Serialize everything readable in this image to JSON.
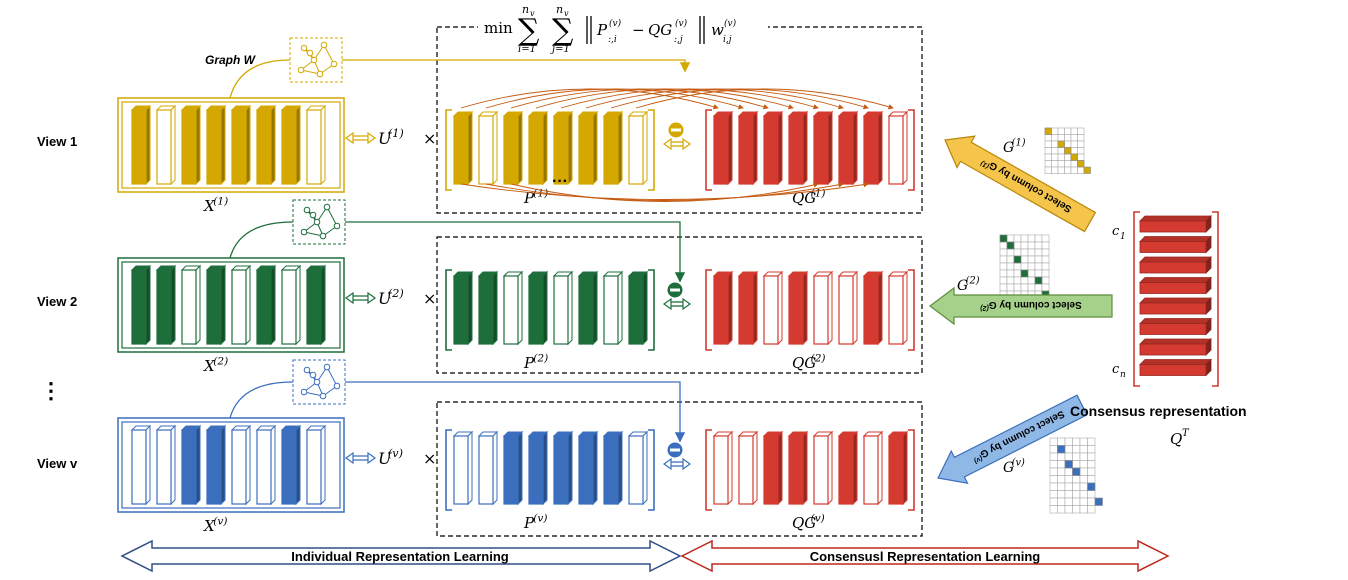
{
  "views": [
    {
      "label": "View 1",
      "x_label": "X",
      "x_sup": "(1)",
      "u_label": "U",
      "u_sup": "(1)",
      "p_label": "P",
      "p_sup": "(1)",
      "qg_label": "QG",
      "qg_sup": "(1)",
      "g_label": "G",
      "g_sup": "(1)",
      "arrow_text": "Select column by G",
      "arrow_sup": "(1)",
      "color": "#d4a800",
      "filled": [
        1,
        0,
        1,
        1,
        1,
        1,
        1,
        0
      ],
      "p_filled": [
        1,
        0,
        1,
        1,
        1,
        1,
        1,
        0
      ],
      "qg_filled": [
        1,
        1,
        1,
        1,
        1,
        1,
        1,
        0
      ]
    },
    {
      "label": "View 2",
      "x_label": "X",
      "x_sup": "(2)",
      "u_label": "U",
      "u_sup": "(2)",
      "p_label": "P",
      "p_sup": "(2)",
      "qg_label": "QG",
      "qg_sup": "(2)",
      "g_label": "G",
      "g_sup": "(2)",
      "arrow_text": "Select column by G",
      "arrow_sup": "(2)",
      "color": "#1e6e3c",
      "filled": [
        1,
        1,
        0,
        1,
        0,
        1,
        0,
        1
      ],
      "p_filled": [
        1,
        1,
        0,
        1,
        0,
        1,
        0,
        1
      ],
      "qg_filled": [
        1,
        1,
        0,
        1,
        0,
        0,
        1,
        0
      ]
    },
    {
      "label": "View v",
      "x_label": "X",
      "x_sup": "(v)",
      "u_label": "U",
      "u_sup": "(v)",
      "p_label": "P",
      "p_sup": "(v)",
      "qg_label": "QG",
      "qg_sup": "(v)",
      "g_label": "G",
      "g_sup": "(v)",
      "arrow_text": "Select column by G",
      "arrow_sup": "(v)",
      "color": "#3b6fbe",
      "filled": [
        0,
        0,
        1,
        1,
        0,
        0,
        1,
        0
      ],
      "p_filled": [
        0,
        0,
        1,
        1,
        1,
        1,
        1,
        0
      ],
      "qg_filled": [
        0,
        0,
        1,
        1,
        0,
        1,
        0,
        1
      ]
    }
  ],
  "graph_label": "Graph W",
  "vdots": "⋮",
  "dots": "···",
  "objective": {
    "min": "min",
    "sum1": "∑",
    "sum1_sub": "i=1",
    "sum1_sup": "n",
    "sum1_sup_sub": "v",
    "sum2": "∑",
    "sum2_sub": "j=1",
    "sum2_sup": "n",
    "sum2_sup_sub": "v",
    "norm_body": "P",
    "norm_body_sub": ":,i",
    "norm_body_sup": "(v)",
    "minus": "−",
    "qg": "QG",
    "qg_sub": ":,j",
    "qg_sup": "(v)",
    "w": "w",
    "w_sub": "i,j",
    "w_sup": "(v)"
  },
  "consensus": {
    "title": "Consensus representation",
    "q_label": "Q",
    "q_sup": "T",
    "c1": "c",
    "c1_sub": "1",
    "cn": "c",
    "cn_sub": "n"
  },
  "bottom": {
    "left": "Individual Representation Learning",
    "right": "Consensusl Representation Learning"
  },
  "colors": {
    "yellow": "#d4a800",
    "green": "#1e6e3c",
    "blue": "#3b6fbe",
    "red": "#d43a2f",
    "darkred": "#b51d18"
  }
}
